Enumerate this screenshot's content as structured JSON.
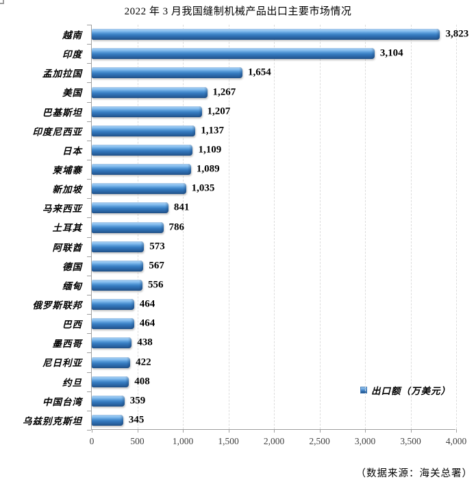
{
  "page": {
    "title": "2022 年 3 月我国缝制机械产品出口主要市场情况",
    "source_note": "（数据来源：海关总署）"
  },
  "legend": {
    "label": "出口额（万美元）"
  },
  "chart_data": {
    "type": "bar",
    "orientation": "horizontal",
    "title": "2022 年 3 月我国缝制机械产品出口主要市场情况",
    "categories": [
      "越南",
      "印度",
      "孟加拉国",
      "美国",
      "巴基斯坦",
      "印度尼西亚",
      "日本",
      "柬埔寨",
      "新加坡",
      "马来西亚",
      "土耳其",
      "阿联酋",
      "德国",
      "缅甸",
      "俄罗斯联邦",
      "巴西",
      "墨西哥",
      "尼日利亚",
      "约旦",
      "中国台湾",
      "乌兹别克斯坦"
    ],
    "values": [
      3823,
      3104,
      1654,
      1267,
      1207,
      1137,
      1109,
      1089,
      1035,
      841,
      786,
      573,
      567,
      556,
      464,
      464,
      438,
      422,
      408,
      359,
      345
    ],
    "value_labels": [
      "3,823",
      "3,104",
      "1,654",
      "1,267",
      "1,207",
      "1,137",
      "1,109",
      "1,089",
      "1,035",
      "841",
      "786",
      "573",
      "567",
      "556",
      "464",
      "464",
      "438",
      "422",
      "408",
      "359",
      "345"
    ],
    "xlabel": "",
    "ylabel": "",
    "xlim": [
      0,
      4000
    ],
    "x_tick_step": 500,
    "x_tick_labels": [
      "0",
      "500",
      "1,000",
      "1,500",
      "2,000",
      "2,500",
      "3,000",
      "3,500",
      "4,000"
    ],
    "grid": "vertical-dashed",
    "legend_entries": [
      "出口额（万美元）"
    ],
    "legend_position": "inside-right-lower",
    "colors": {
      "bar_main": "#3579be",
      "bar_highlight": "#9fcbf2",
      "bar_dark": "#1f4f85",
      "axis": "#9e9e9e",
      "gridline": "#dcdcdc",
      "tick_label": "#3f3f3f"
    }
  }
}
